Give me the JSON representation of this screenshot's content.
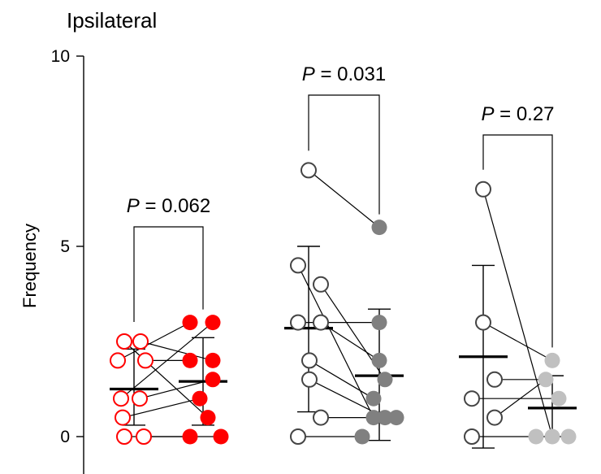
{
  "chart_data": {
    "type": "scatter",
    "title": "Ipsilateral",
    "ylabel": "Frequency",
    "ylim": [
      0,
      10
    ],
    "yticks": [
      0,
      5,
      10
    ],
    "grid": false,
    "groups": [
      {
        "color": "#ff0000",
        "p_label": "P",
        "p_value": " = 0.062",
        "pre": {
          "mean": 1.25,
          "err_low": 0.3,
          "err_high": 2.3,
          "points": [
            2.5,
            2.5,
            2.0,
            2.0,
            1.0,
            1.0,
            0.5,
            0.0,
            0.0
          ]
        },
        "post": {
          "mean": 1.45,
          "err_low": 0.3,
          "err_high": 2.6,
          "points": [
            3.0,
            3.0,
            2.0,
            2.0,
            1.5,
            1.0,
            0.5,
            0.0,
            0.0
          ]
        }
      },
      {
        "color": "#808080",
        "p_label": "P",
        "p_value": " = 0.031",
        "pre": {
          "mean": 2.85,
          "err_low": 0.65,
          "err_high": 5.0,
          "points": [
            7.0,
            4.5,
            4.0,
            3.0,
            3.0,
            2.0,
            1.5,
            0.5,
            0.0
          ]
        },
        "post": {
          "mean": 1.6,
          "err_low": -0.1,
          "err_high": 3.35,
          "points": [
            5.5,
            3.0,
            2.0,
            1.5,
            1.0,
            0.5,
            0.5,
            0.5,
            0.0
          ]
        }
      },
      {
        "color": "#c0c0c0",
        "p_label": "P",
        "p_value": " = 0.27",
        "pre": {
          "mean": 2.1,
          "err_low": -0.3,
          "err_high": 4.5,
          "points": [
            6.5,
            3.0,
            1.5,
            1.0,
            0.5,
            0.0
          ]
        },
        "post": {
          "mean": 0.75,
          "err_low": 0.0,
          "err_high": 1.6,
          "points": [
            2.0,
            1.5,
            1.0,
            0.0,
            0.0,
            0.0
          ]
        }
      }
    ]
  }
}
